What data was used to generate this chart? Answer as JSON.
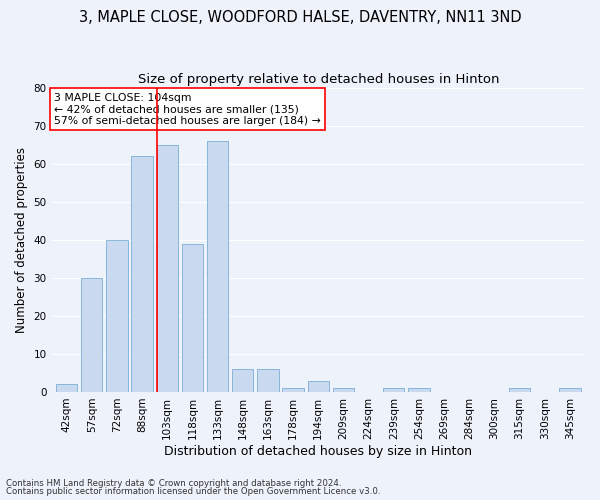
{
  "title1": "3, MAPLE CLOSE, WOODFORD HALSE, DAVENTRY, NN11 3ND",
  "title2": "Size of property relative to detached houses in Hinton",
  "xlabel": "Distribution of detached houses by size in Hinton",
  "ylabel": "Number of detached properties",
  "categories": [
    "42sqm",
    "57sqm",
    "72sqm",
    "88sqm",
    "103sqm",
    "118sqm",
    "133sqm",
    "148sqm",
    "163sqm",
    "178sqm",
    "194sqm",
    "209sqm",
    "224sqm",
    "239sqm",
    "254sqm",
    "269sqm",
    "284sqm",
    "300sqm",
    "315sqm",
    "330sqm",
    "345sqm"
  ],
  "values": [
    2,
    30,
    40,
    62,
    65,
    39,
    66,
    6,
    6,
    1,
    3,
    1,
    0,
    1,
    1,
    0,
    0,
    0,
    1,
    0,
    1
  ],
  "bar_color": "#c9d9f0",
  "bar_edgecolor": "#7bafd4",
  "redline_index": 4,
  "annotation_line1": "3 MAPLE CLOSE: 104sqm",
  "annotation_line2": "← 42% of detached houses are smaller (135)",
  "annotation_line3": "57% of semi-detached houses are larger (184) →",
  "ylim": [
    0,
    80
  ],
  "yticks": [
    0,
    10,
    20,
    30,
    40,
    50,
    60,
    70,
    80
  ],
  "footer1": "Contains HM Land Registry data © Crown copyright and database right 2024.",
  "footer2": "Contains public sector information licensed under the Open Government Licence v3.0.",
  "bg_color": "#eef2fb",
  "grid_color": "#ffffff",
  "title1_fontsize": 10.5,
  "title2_fontsize": 9.5,
  "xlabel_fontsize": 9,
  "ylabel_fontsize": 8.5,
  "annotation_fontsize": 7.8,
  "tick_fontsize": 7.5,
  "footer_fontsize": 6.2
}
